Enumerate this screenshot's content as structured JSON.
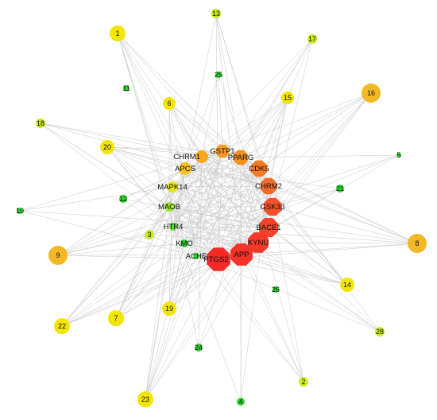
{
  "nodes": [
    "1",
    "13",
    "17",
    "11",
    "25",
    "6",
    "15",
    "16",
    "18",
    "20",
    "5",
    "21",
    "12",
    "10",
    "3",
    "8",
    "9",
    "14",
    "26",
    "19",
    "7",
    "22",
    "28",
    "24",
    "2",
    "4",
    "23"
  ],
  "hubs": [
    "CHRM1",
    "GSTP1",
    "PPARG",
    "CDK5",
    "APCS",
    "CHRM2",
    "MAPK14",
    "GSK3β",
    "MAOB",
    "BACE1",
    "HTR4",
    "KYNU",
    "KMO",
    "APP",
    "ACHE",
    "PTGS2"
  ]
}
